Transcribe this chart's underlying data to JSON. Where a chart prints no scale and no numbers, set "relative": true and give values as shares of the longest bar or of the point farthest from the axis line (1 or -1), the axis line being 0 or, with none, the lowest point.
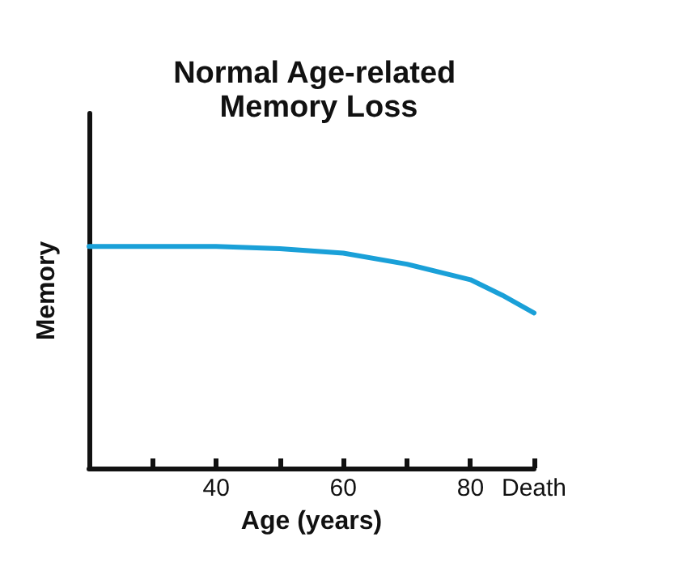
{
  "chart_data": {
    "type": "line",
    "title": "Normal Age-related Memory Loss",
    "xlabel": "Age (years)",
    "ylabel": "Memory",
    "relative": true,
    "x": [
      20,
      30,
      40,
      50,
      60,
      70,
      80,
      85,
      90
    ],
    "series": [
      {
        "color": "#1aa0d8",
        "values": [
          1,
          1,
          1,
          0.99,
          0.97,
          0.92,
          0.85,
          0.78,
          0.7
        ]
      }
    ],
    "xlim": [
      20,
      90
    ],
    "xticks": [
      {
        "value": 30,
        "label": null
      },
      40,
      {
        "value": 50,
        "label": null
      },
      60,
      {
        "value": 70,
        "label": null
      },
      80,
      {
        "value": 90,
        "label": "Death"
      }
    ],
    "grid": false,
    "marker": "none",
    "line_style": "solid"
  }
}
